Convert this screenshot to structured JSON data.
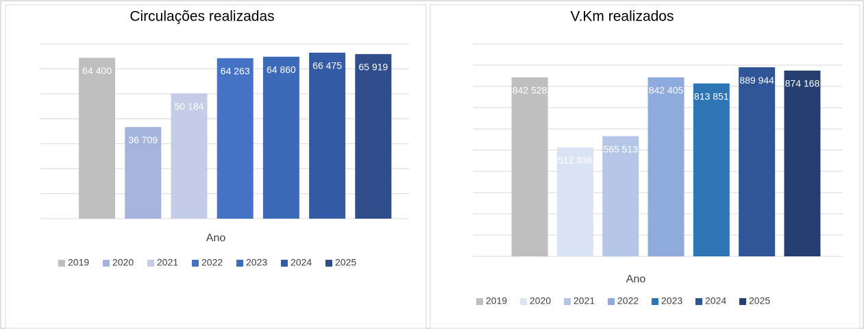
{
  "chart_data": [
    {
      "type": "bar",
      "title": "Circulações realizadas",
      "x_label": "Ano",
      "categories": [
        "2019",
        "2020",
        "2021",
        "2022",
        "2023",
        "2024",
        "2025"
      ],
      "values": [
        64400,
        36709,
        50184,
        64263,
        64860,
        66475,
        65919
      ],
      "value_labels": [
        "64 400",
        "36 709",
        "50 184",
        "64 263",
        "64 860",
        "66 475",
        "65 919"
      ],
      "colors": [
        "#bfbfbf",
        "#a5b4dc",
        "#c4cde8",
        "#4472c4",
        "#3d6ab8",
        "#345ca6",
        "#2e4d8a"
      ],
      "ylim": [
        0,
        70000
      ],
      "yticks": [
        0,
        10000,
        20000,
        30000,
        40000,
        50000,
        60000,
        70000
      ],
      "grid": true,
      "legend": "bottom"
    },
    {
      "type": "bar",
      "title": "V.Km realizados",
      "x_label": "Ano",
      "categories": [
        "2019",
        "2020",
        "2021",
        "2022",
        "2023",
        "2024",
        "2025"
      ],
      "values": [
        842528,
        512836,
        565513,
        842405,
        813851,
        889944,
        874168
      ],
      "value_labels": [
        "842 528",
        "512 836",
        "565 513",
        "842 405",
        "813 851",
        "889 944",
        "874 168"
      ],
      "colors": [
        "#bfbfbf",
        "#dae3f3",
        "#b4c7e7",
        "#8faadc",
        "#2e75b6",
        "#2f5597",
        "#243f70"
      ],
      "ylim": [
        0,
        1000000
      ],
      "yticks": [
        0,
        100000,
        200000,
        300000,
        400000,
        500000,
        600000,
        700000,
        800000,
        900000,
        1000000
      ],
      "grid": true,
      "legend": "bottom"
    }
  ]
}
